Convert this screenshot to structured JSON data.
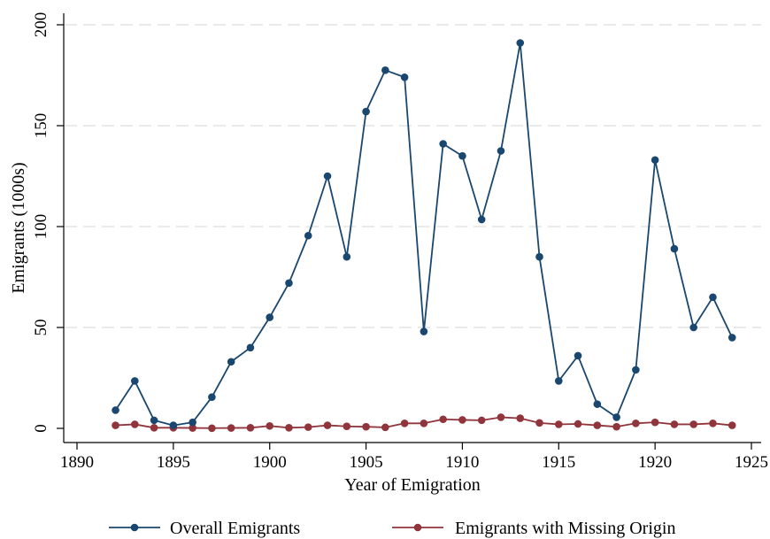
{
  "chart_data": {
    "type": "line",
    "title": "",
    "xlabel": "Year of Emigration",
    "ylabel": "Emigrants (1000s)",
    "xlim": [
      1890,
      1925
    ],
    "ylim": [
      0,
      200
    ],
    "xticks": [
      1890,
      1895,
      1900,
      1905,
      1910,
      1915,
      1920,
      1925
    ],
    "yticks": [
      0,
      50,
      100,
      150,
      200
    ],
    "grid": "horizontal dashed",
    "legend_position": "bottom",
    "x": [
      1892,
      1893,
      1894,
      1895,
      1896,
      1897,
      1898,
      1899,
      1900,
      1901,
      1902,
      1903,
      1904,
      1905,
      1906,
      1907,
      1908,
      1909,
      1910,
      1911,
      1912,
      1913,
      1914,
      1915,
      1916,
      1917,
      1918,
      1919,
      1920,
      1921,
      1922,
      1923,
      1924
    ],
    "series": [
      {
        "name": "Overall Emigrants",
        "color": "#1a476f",
        "values": [
          9,
          23.5,
          4,
          1.5,
          3,
          15.5,
          33,
          40,
          55,
          72,
          95.5,
          125,
          85,
          157,
          177.5,
          174,
          48,
          141,
          135,
          103.5,
          137.5,
          191,
          85,
          23.5,
          36,
          12,
          5.5,
          29,
          133,
          89,
          50,
          65,
          45
        ]
      },
      {
        "name": "Emigrants with Missing Origin",
        "color": "#90353b",
        "values": [
          1.5,
          2,
          0.3,
          0.3,
          0.2,
          0.1,
          0.2,
          0.3,
          1.2,
          0.3,
          0.6,
          1.5,
          1,
          0.8,
          0.5,
          2.5,
          2.5,
          4.5,
          4.2,
          4,
          5.5,
          5,
          2.7,
          2,
          2.2,
          1.5,
          0.8,
          2.5,
          3,
          2,
          2,
          2.5,
          1.5
        ]
      }
    ]
  }
}
